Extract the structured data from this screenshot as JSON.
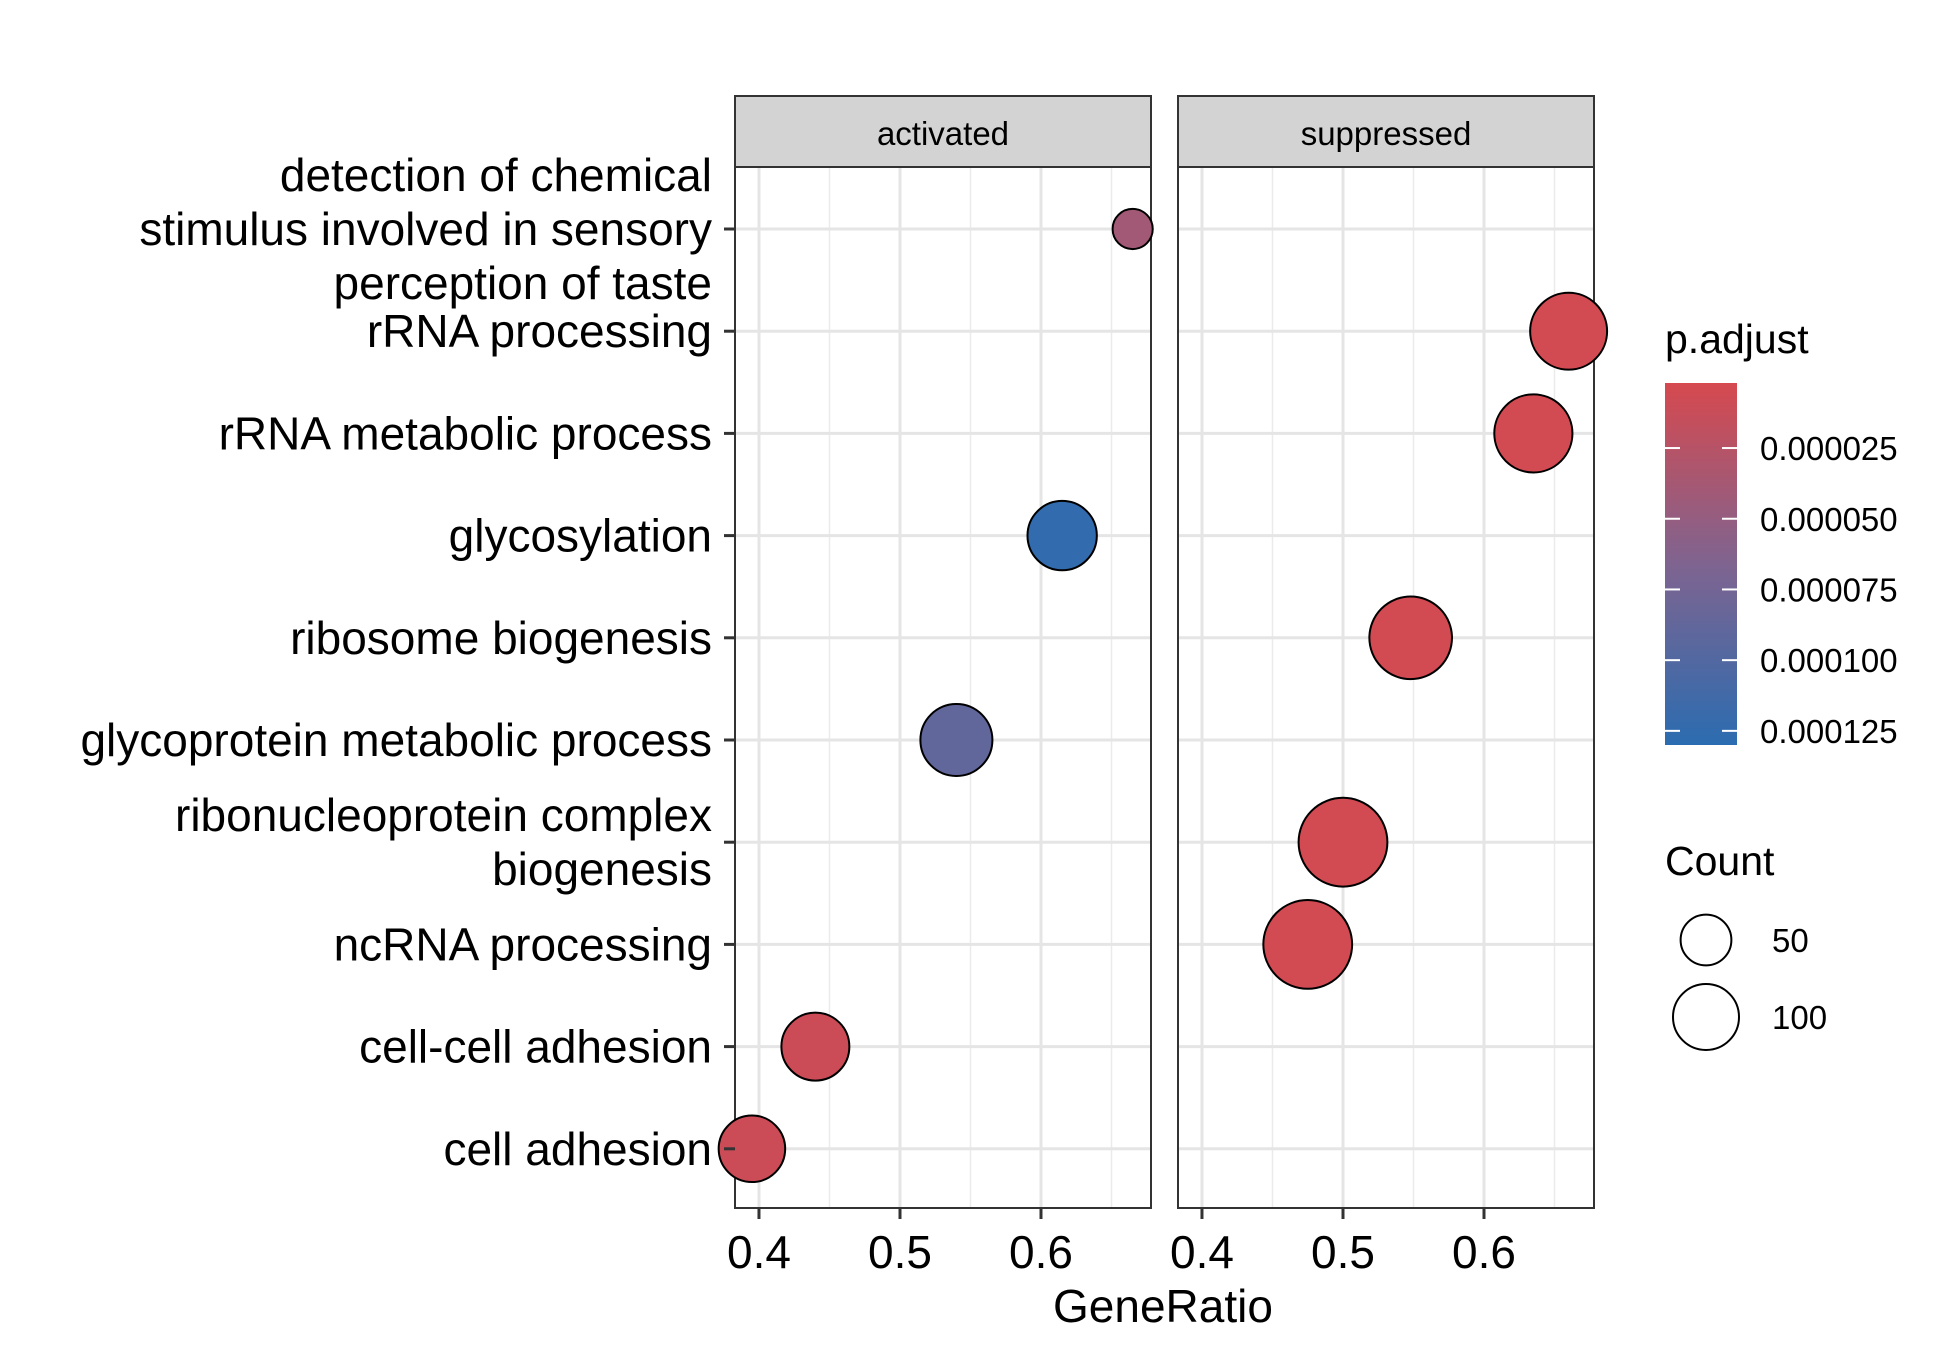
{
  "chart_data": {
    "type": "scatter",
    "xlabel": "GeneRatio",
    "ylabel": "",
    "panels": [
      "activated",
      "suppressed"
    ],
    "xlim": [
      0.383,
      0.678
    ],
    "x_ticks": [
      "0.4",
      "0.5",
      "0.6"
    ],
    "x_tick_values": [
      0.4,
      0.5,
      0.6
    ],
    "categories": [
      "detection of chemical stimulus involved in sensory perception of taste",
      "rRNA processing",
      "rRNA metabolic process",
      "glycosylation",
      "ribosome biogenesis",
      "glycoprotein metabolic process",
      "ribonucleoprotein complex biogenesis",
      "ncRNA processing",
      "cell-cell adhesion",
      "cell adhesion"
    ],
    "category_label_lines": [
      [
        "detection of chemical",
        "stimulus involved in sensory",
        "perception of taste"
      ],
      [
        "rRNA processing"
      ],
      [
        "rRNA metabolic process"
      ],
      [
        "glycosylation"
      ],
      [
        "ribosome biogenesis"
      ],
      [
        "glycoprotein metabolic process"
      ],
      [
        "ribonucleoprotein complex",
        "biogenesis"
      ],
      [
        "ncRNA processing"
      ],
      [
        "cell-cell adhesion"
      ],
      [
        "cell adhesion"
      ]
    ],
    "points": [
      {
        "panel": "activated",
        "term": "detection of chemical stimulus involved in sensory perception of taste",
        "gene_ratio": 0.665,
        "count": 15,
        "p_adjust": 4e-05
      },
      {
        "panel": "activated",
        "term": "glycosylation",
        "gene_ratio": 0.615,
        "count": 90,
        "p_adjust": 0.000125
      },
      {
        "panel": "activated",
        "term": "glycoprotein metabolic process",
        "gene_ratio": 0.54,
        "count": 100,
        "p_adjust": 8.8e-05
      },
      {
        "panel": "activated",
        "term": "cell-cell adhesion",
        "gene_ratio": 0.44,
        "count": 85,
        "p_adjust": 1e-05
      },
      {
        "panel": "activated",
        "term": "cell adhesion",
        "gene_ratio": 0.395,
        "count": 80,
        "p_adjust": 1e-05
      },
      {
        "panel": "suppressed",
        "term": "rRNA processing",
        "gene_ratio": 0.66,
        "count": 120,
        "p_adjust": 5e-06
      },
      {
        "panel": "suppressed",
        "term": "rRNA metabolic process",
        "gene_ratio": 0.635,
        "count": 125,
        "p_adjust": 5e-06
      },
      {
        "panel": "suppressed",
        "term": "ribosome biogenesis",
        "gene_ratio": 0.548,
        "count": 145,
        "p_adjust": 5e-06
      },
      {
        "panel": "suppressed",
        "term": "ribonucleoprotein complex biogenesis",
        "gene_ratio": 0.5,
        "count": 175,
        "p_adjust": 5e-06
      },
      {
        "panel": "suppressed",
        "term": "ncRNA processing",
        "gene_ratio": 0.475,
        "count": 175,
        "p_adjust": 5e-06
      }
    ],
    "color_legend": {
      "title": "p.adjust",
      "ticks": [
        "0.000025",
        "0.000050",
        "0.000075",
        "0.000100",
        "0.000125"
      ],
      "tick_values": [
        2.5e-05,
        5e-05,
        7.5e-05,
        0.0001,
        0.000125
      ],
      "range": [
        2e-06,
        0.00013
      ],
      "low_color": "#D6494F",
      "mid_color": "#7F6490",
      "high_color": "#2B6CB0"
    },
    "size_legend": {
      "title": "Count",
      "labels": [
        "50",
        "100"
      ],
      "values": [
        50,
        100
      ]
    }
  }
}
